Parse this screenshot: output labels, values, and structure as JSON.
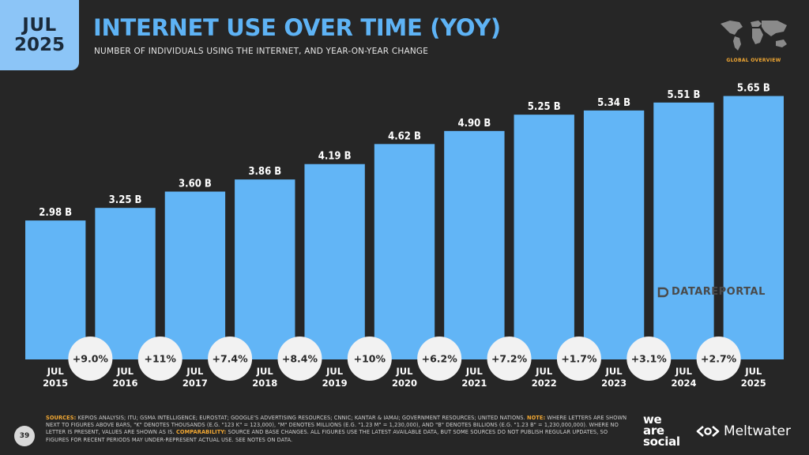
{
  "badge": {
    "month": "JUL",
    "year": "2025"
  },
  "header": {
    "title": "INTERNET USE OVER TIME (YOY)",
    "subtitle": "NUMBER OF INDIVIDUALS USING THE INTERNET, AND YEAR-ON-YEAR CHANGE",
    "overview_label": "GLOBAL OVERVIEW"
  },
  "watermark": "DATAREPORTAL",
  "footer": {
    "page_number": "39",
    "sources_label": "SOURCES:",
    "sources_text": " KEPIOS ANALYSIS; ITU; GSMA INTELLIGENCE; EUROSTAT; GOOGLE'S ADVERTISING RESOURCES; CNNIC; KANTAR & IAMAI; GOVERNMENT RESOURCES; UNITED NATIONS. ",
    "note_label": "NOTE:",
    "note_text": " WHERE LETTERS ARE SHOWN NEXT TO FIGURES ABOVE BARS, \"K\" DENOTES THOUSANDS (E.G. \"123 K\" = 123,000), \"M\" DENOTES MILLIONS (E.G. \"1.23 M\" = 1,230,000), AND \"B\" DENOTES BILLIONS (E.G. \"1.23 B\" = 1,230,000,000). WHERE NO LETTER IS PRESENT, VALUES ARE SHOWN AS IS. ",
    "comparability_label": "COMPARABILITY:",
    "comparability_text": " SOURCE AND BASE CHANGES. ALL FIGURES USE THE LATEST AVAILABLE DATA, BUT SOME SOURCES DO NOT PUBLISH REGULAR UPDATES, SO FIGURES FOR RECENT PERIODS MAY UNDER-REPRESENT ACTUAL USE. SEE NOTES ON DATA.",
    "brand_left": [
      "we",
      "are",
      "social"
    ],
    "brand_right": "Meltwater"
  },
  "colors": {
    "bar": "#62b5f6",
    "title": "#5eb3f5",
    "accent": "#f2a833",
    "background": "#262626"
  },
  "chart_data": {
    "type": "bar",
    "categories": [
      "JUL 2015",
      "JUL 2016",
      "JUL 2017",
      "JUL 2018",
      "JUL 2019",
      "JUL 2020",
      "JUL 2021",
      "JUL 2022",
      "JUL 2023",
      "JUL 2024",
      "JUL 2025"
    ],
    "category_lines": [
      [
        "JUL",
        "2015"
      ],
      [
        "JUL",
        "2016"
      ],
      [
        "JUL",
        "2017"
      ],
      [
        "JUL",
        "2018"
      ],
      [
        "JUL",
        "2019"
      ],
      [
        "JUL",
        "2020"
      ],
      [
        "JUL",
        "2021"
      ],
      [
        "JUL",
        "2022"
      ],
      [
        "JUL",
        "2023"
      ],
      [
        "JUL",
        "2024"
      ],
      [
        "JUL",
        "2025"
      ]
    ],
    "values": [
      2.98,
      3.25,
      3.6,
      3.86,
      4.19,
      4.62,
      4.9,
      5.25,
      5.34,
      5.51,
      5.65
    ],
    "value_labels": [
      "2.98 B",
      "3.25 B",
      "3.60 B",
      "3.86 B",
      "4.19 B",
      "4.62 B",
      "4.90 B",
      "5.25 B",
      "5.34 B",
      "5.51 B",
      "5.65 B"
    ],
    "unit": "B",
    "yoy_change": [
      "+9.0%",
      "+11%",
      "+7.4%",
      "+8.4%",
      "+10%",
      "+6.2%",
      "+7.2%",
      "+1.7%",
      "+3.1%",
      "+2.7%"
    ],
    "ylim": [
      0,
      6.1
    ]
  }
}
